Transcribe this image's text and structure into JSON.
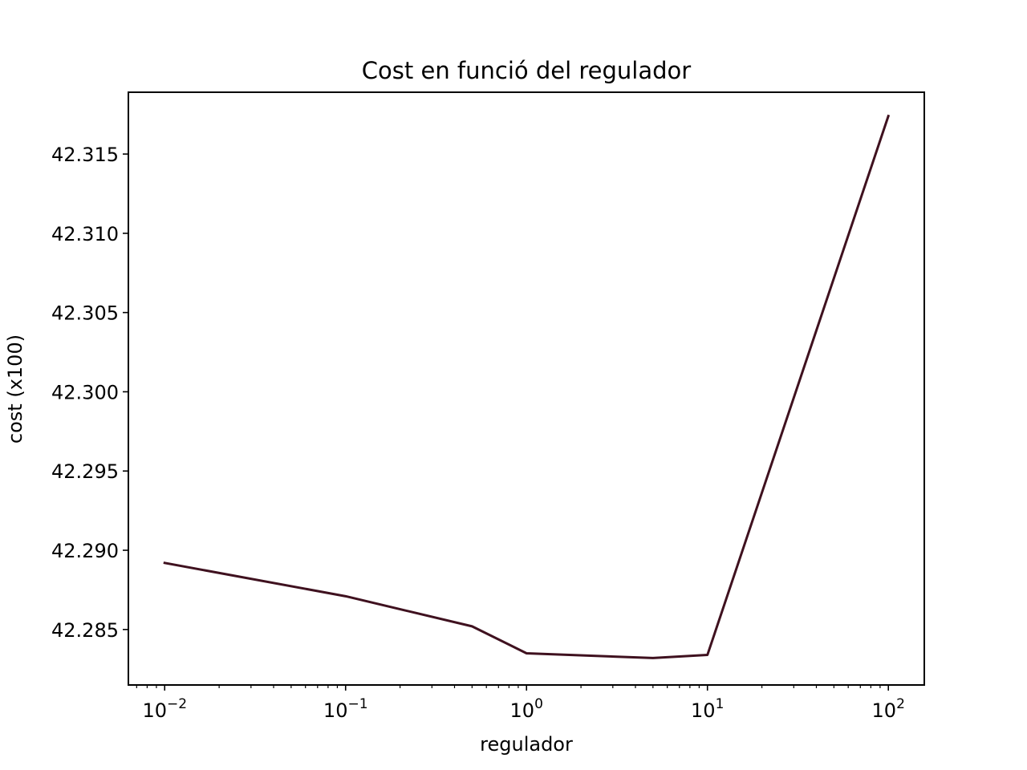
{
  "chart_data": {
    "type": "line",
    "title": "Cost en funció del regulador",
    "xlabel": "regulador",
    "ylabel": "cost (x100)",
    "x_scale": "log",
    "grid": false,
    "legend": "none",
    "xlim": [
      0.0063,
      158
    ],
    "ylim": [
      42.2815,
      42.3189
    ],
    "x_ticks": [
      {
        "value": 0.01,
        "base": "10",
        "exp": "−2"
      },
      {
        "value": 0.1,
        "base": "10",
        "exp": "−1"
      },
      {
        "value": 1,
        "base": "10",
        "exp": "0"
      },
      {
        "value": 10,
        "base": "10",
        "exp": "1"
      },
      {
        "value": 100,
        "base": "10",
        "exp": "2"
      }
    ],
    "y_ticks": [
      {
        "value": 42.285,
        "label": "42.285"
      },
      {
        "value": 42.29,
        "label": "42.290"
      },
      {
        "value": 42.295,
        "label": "42.295"
      },
      {
        "value": 42.3,
        "label": "42.300"
      },
      {
        "value": 42.305,
        "label": "42.305"
      },
      {
        "value": 42.31,
        "label": "42.310"
      },
      {
        "value": 42.315,
        "label": "42.315"
      }
    ],
    "series": [
      {
        "color": "#3f111f",
        "x": [
          0.01,
          0.1,
          0.5,
          1,
          5,
          10,
          100
        ],
        "y": [
          42.2892,
          42.2871,
          42.2852,
          42.2835,
          42.2832,
          42.2834,
          42.3174
        ]
      }
    ]
  }
}
